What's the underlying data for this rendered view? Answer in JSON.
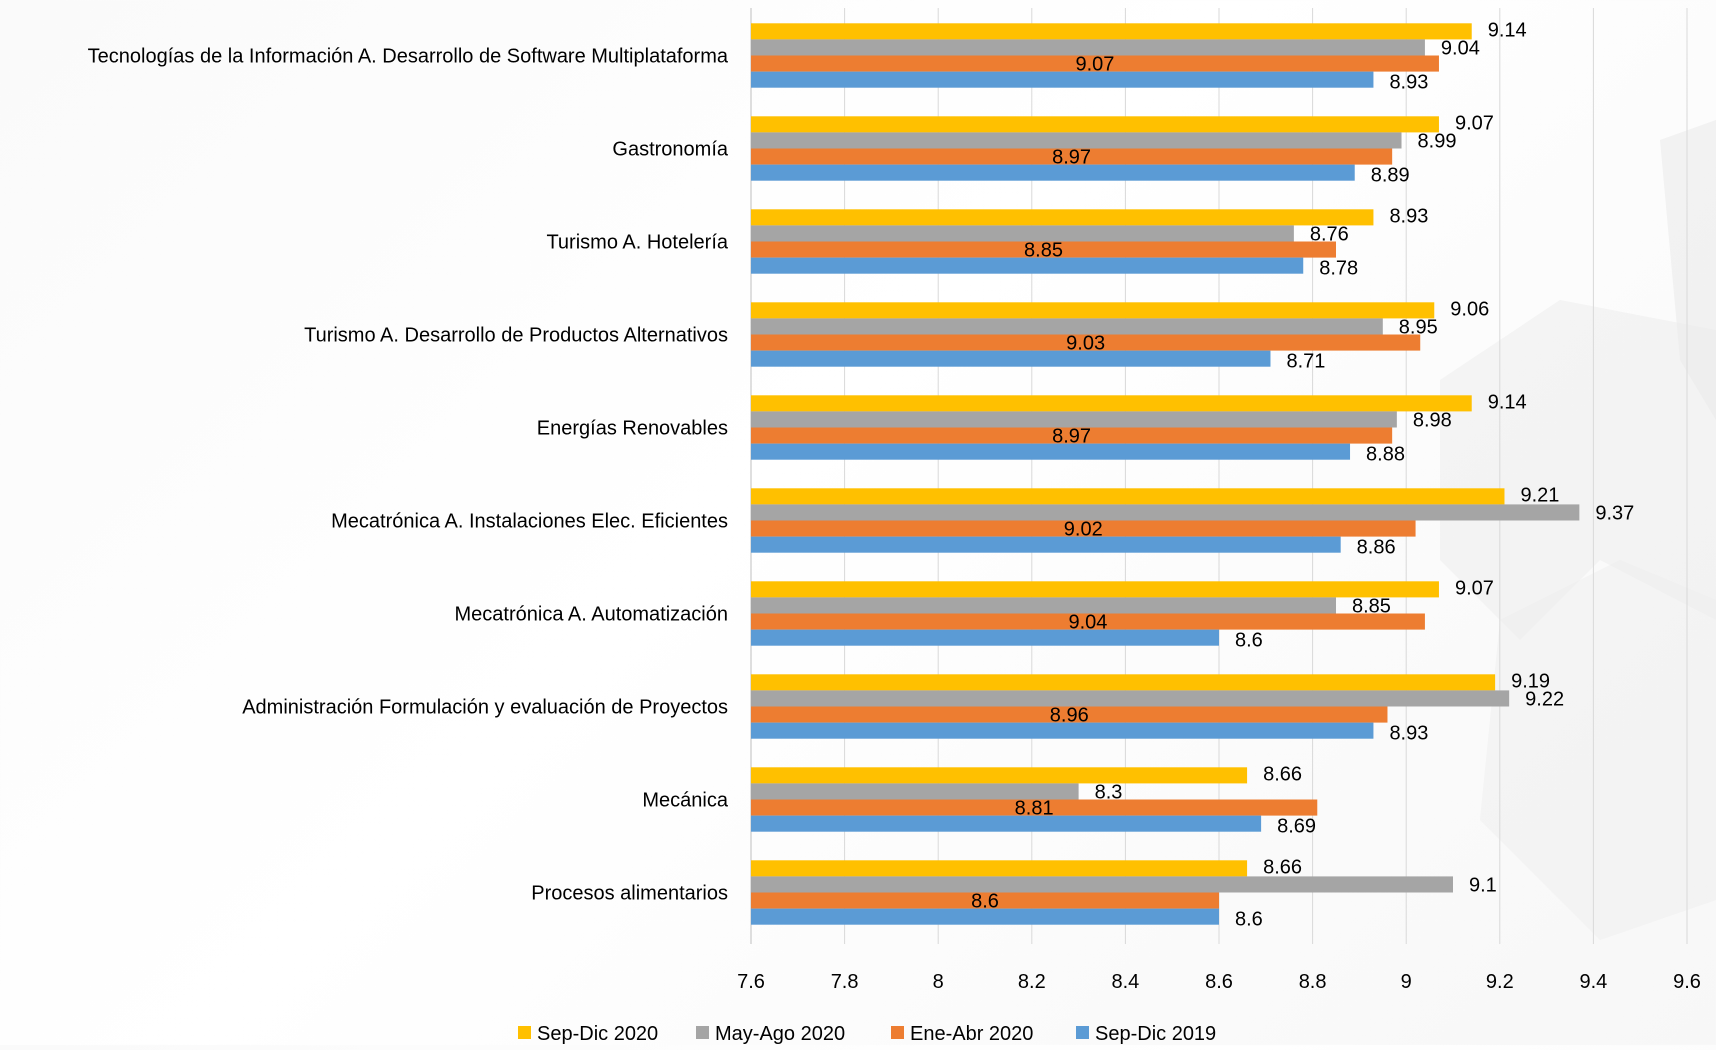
{
  "chart_data": {
    "type": "bar",
    "orientation": "horizontal",
    "categories": [
      "Tecnologías de la Información A. Desarrollo de Software Multiplataforma",
      "Gastronomía",
      "Turismo A. Hotelería",
      "Turismo A. Desarrollo de Productos Alternativos",
      "Energías Renovables",
      "Mecatrónica A. Instalaciones Elec. Eficientes",
      "Mecatrónica A. Automatización",
      "Administración Formulación y evaluación de Proyectos",
      "Mecánica",
      "Procesos alimentarios"
    ],
    "series": [
      {
        "name": "Sep-Dic 2020",
        "color": "#FFC000",
        "values": [
          9.14,
          9.07,
          8.93,
          9.06,
          9.14,
          9.21,
          9.07,
          9.19,
          8.66,
          8.66
        ]
      },
      {
        "name": "May-Ago 2020",
        "color": "#A5A5A5",
        "values": [
          9.04,
          8.99,
          8.76,
          8.95,
          8.98,
          9.37,
          8.85,
          9.22,
          8.3,
          9.1
        ]
      },
      {
        "name": "Ene-Abr 2020",
        "color": "#ED7D31",
        "values": [
          9.07,
          8.97,
          8.85,
          9.03,
          8.97,
          9.02,
          9.04,
          8.96,
          8.81,
          8.6
        ]
      },
      {
        "name": "Sep-Dic 2019",
        "color": "#5B9BD5",
        "values": [
          8.93,
          8.89,
          8.78,
          8.71,
          8.88,
          8.86,
          8.6,
          8.93,
          8.69,
          8.6
        ]
      }
    ],
    "xlim": [
      7.6,
      9.6
    ],
    "xticks": [
      "7.6",
      "7.8",
      "8",
      "8.2",
      "8.4",
      "8.6",
      "8.8",
      "9",
      "9.2",
      "9.4",
      "9.6"
    ],
    "grid": "vertical",
    "legend": "bottom"
  }
}
